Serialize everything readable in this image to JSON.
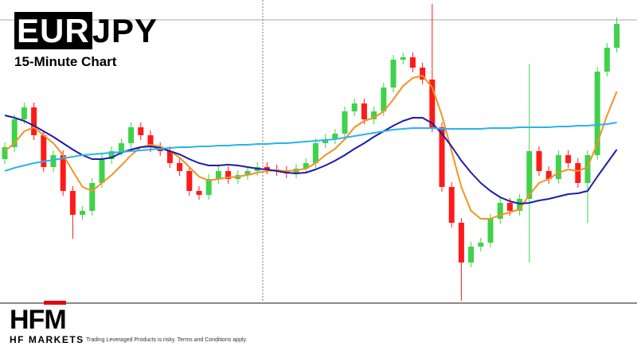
{
  "chart_data": {
    "type": "candlestick",
    "title_box": "EUR",
    "title_rest": "JPY",
    "subtitle": "15-Minute Chart",
    "ylim": [
      0,
      380
    ],
    "up_color": "#3fd24a",
    "down_color": "#ff1a1a",
    "open": [
      180,
      195,
      230,
      245,
      210,
      170,
      185,
      140,
      110,
      115,
      150,
      180,
      190,
      200,
      220,
      210,
      195,
      190,
      175,
      165,
      140,
      135,
      155,
      165,
      155,
      160,
      165,
      170,
      167,
      165,
      162,
      168,
      175,
      200,
      205,
      212,
      240,
      250,
      230,
      240,
      270,
      305,
      308,
      295,
      280,
      220,
      145,
      100,
      50,
      70,
      75,
      105,
      125,
      115,
      130,
      190,
      165,
      155,
      185,
      175,
      150,
      185,
      290,
      320
    ],
    "high": [
      201,
      236,
      251,
      251,
      216,
      191,
      191,
      146,
      121,
      156,
      186,
      196,
      206,
      226,
      226,
      216,
      201,
      196,
      181,
      171,
      146,
      161,
      171,
      171,
      166,
      171,
      176,
      176,
      173,
      171,
      174,
      181,
      206,
      211,
      218,
      246,
      256,
      256,
      246,
      276,
      311,
      314,
      314,
      301,
      375,
      226,
      151,
      106,
      76,
      81,
      111,
      131,
      131,
      136,
      300,
      196,
      171,
      191,
      191,
      181,
      191,
      296,
      326,
      358
    ],
    "low": [
      174,
      189,
      224,
      204,
      164,
      164,
      134,
      80,
      104,
      109,
      144,
      174,
      184,
      194,
      204,
      189,
      184,
      169,
      159,
      134,
      129,
      129,
      149,
      149,
      149,
      154,
      159,
      161,
      159,
      156,
      156,
      162,
      169,
      194,
      199,
      206,
      234,
      224,
      224,
      234,
      264,
      299,
      289,
      274,
      214,
      139,
      94,
      2,
      44,
      64,
      69,
      99,
      109,
      109,
      50,
      159,
      149,
      149,
      169,
      144,
      100,
      179,
      284,
      314
    ],
    "close": [
      195,
      230,
      245,
      210,
      170,
      185,
      140,
      110,
      115,
      150,
      180,
      190,
      200,
      220,
      210,
      195,
      190,
      175,
      165,
      140,
      135,
      155,
      165,
      155,
      160,
      165,
      170,
      167,
      165,
      162,
      168,
      175,
      200,
      205,
      212,
      240,
      250,
      230,
      240,
      270,
      305,
      308,
      295,
      280,
      220,
      145,
      100,
      50,
      70,
      75,
      105,
      125,
      115,
      130,
      190,
      165,
      155,
      185,
      175,
      150,
      185,
      290,
      320,
      350
    ],
    "series": [
      {
        "color": "#f39322",
        "values": [
          190,
          200,
          215,
          220,
          210,
          200,
          185,
          165,
          145,
          140,
          150,
          160,
          172,
          185,
          195,
          198,
          196,
          190,
          182,
          170,
          158,
          153,
          155,
          157,
          158,
          160,
          163,
          165,
          166,
          165,
          166,
          168,
          175,
          185,
          193,
          205,
          220,
          228,
          232,
          240,
          255,
          272,
          282,
          285,
          270,
          235,
          190,
          145,
          115,
          105,
          105,
          110,
          113,
          117,
          135,
          150,
          155,
          163,
          167,
          165,
          170,
          200,
          235,
          265
        ]
      },
      {
        "color": "#1c1caa",
        "values": [
          235,
          232,
          228,
          222,
          215,
          208,
          200,
          192,
          185,
          180,
          180,
          182,
          188,
          192,
          195,
          196,
          194,
          190,
          186,
          180,
          175,
          172,
          172,
          173,
          172,
          170,
          168,
          167,
          165,
          163,
          162,
          163,
          167,
          172,
          178,
          185,
          193,
          200,
          208,
          215,
          222,
          228,
          232,
          232,
          225,
          212,
          196,
          178,
          163,
          150,
          140,
          132,
          127,
          124,
          125,
          128,
          130,
          133,
          136,
          137,
          140,
          158,
          175,
          192
        ]
      },
      {
        "color": "#29b4ee",
        "values": [
          165,
          169,
          172,
          175,
          177,
          179,
          181,
          183,
          185,
          186,
          187,
          188,
          189,
          190,
          191,
          192,
          193,
          194,
          195,
          195,
          196,
          196,
          197,
          197,
          198,
          198,
          199,
          199,
          200,
          200,
          201,
          202,
          203,
          204,
          205,
          207,
          209,
          211,
          213,
          215,
          217,
          218,
          219,
          219,
          219,
          218,
          218,
          218,
          218,
          218,
          219,
          219,
          219,
          220,
          220,
          220,
          220,
          221,
          221,
          222,
          222,
          223,
          224,
          226
        ]
      }
    ]
  },
  "brand": {
    "logo_hf": "HF",
    "logo_m": "M",
    "name": "HF MARKETS",
    "disclaimer": "Trading Leveraged Products is risky. Terms and Conditions apply."
  }
}
